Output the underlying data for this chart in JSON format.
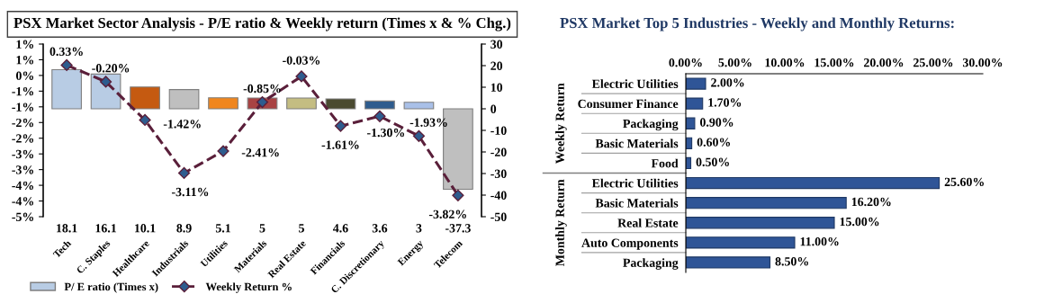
{
  "chart_data": [
    {
      "type": "bar",
      "title": "PSX Market Sector Analysis - P/E ratio & Weekly return (Times x & % Chg.)",
      "categories": [
        "Tech",
        "C. Staples",
        "Healthcare",
        "Industrials",
        "Utilities",
        "Materials",
        "Real Estate",
        "Financials",
        "C. Discretionary",
        "Energy",
        "Telecom"
      ],
      "series": [
        {
          "name": "P/ E ratio (Times x)",
          "axis": "y2",
          "colors": [
            "#b8cce4",
            "#b8cce4",
            "#c55a11",
            "#bfbfbf",
            "#f0861e",
            "#a84343",
            "#c4bd82",
            "#4a4a30",
            "#2e5c8e",
            "#a9c0e8",
            "#bfbfbf"
          ],
          "color": "#b8cce4",
          "values": [
            18.1,
            16.1,
            10.1,
            8.9,
            5.1,
            5,
            5,
            4.6,
            3.6,
            3,
            -37.3
          ],
          "value_labels": [
            "18.1",
            "16.1",
            "10.1",
            "8.9",
            "5.1",
            "5",
            "5",
            "4.6",
            "3.6",
            "3",
            "-37.3"
          ]
        },
        {
          "name": "Weekly Return %",
          "type": "line",
          "axis": "y",
          "color": "#5a1f3a",
          "values": [
            0.33,
            -0.2,
            -1.42,
            -3.11,
            -2.41,
            -0.85,
            -0.03,
            -1.61,
            -1.3,
            -1.93,
            -3.82
          ],
          "value_labels": [
            "0.33%",
            "-0.20%",
            "-1.42%",
            "-3.11%",
            "-2.41%",
            "-0.85%",
            "-0.03%",
            "-1.61%",
            "-1.30%",
            "-1.93%",
            "-3.82%"
          ]
        }
      ],
      "ylim": [
        -4.5,
        1.0
      ],
      "yticks": [
        {
          "value": 1.0,
          "label": "1%"
        },
        {
          "value": 0.5,
          "label": "1%"
        },
        {
          "value": 0,
          "label": "0%"
        },
        {
          "value": -0.5,
          "label": "-1%"
        },
        {
          "value": -1.0,
          "label": "-1%"
        },
        {
          "value": -1.5,
          "label": "-2%"
        },
        {
          "value": -2.0,
          "label": "-2%"
        },
        {
          "value": -2.5,
          "label": "-3%"
        },
        {
          "value": -3.0,
          "label": "-3%"
        },
        {
          "value": -3.5,
          "label": "-4%"
        },
        {
          "value": -4.0,
          "label": "-4%"
        },
        {
          "value": -4.5,
          "label": "-5%"
        }
      ],
      "y2lim": [
        -50,
        30
      ],
      "y2ticks": [
        30,
        20,
        10,
        0,
        -10,
        -20,
        -30,
        -40,
        -50
      ],
      "marker": "diamond",
      "line_style": "dashed",
      "legend": "bottom",
      "grid": false
    },
    {
      "type": "bar",
      "orientation": "horizontal",
      "title": "PSX Market Top 5 Industries - Weekly and Monthly Returns:",
      "categories": [
        "Electric Utilities",
        "Consumer Finance",
        "Packaging",
        "Basic Materials",
        "Food",
        "Electric Utilities",
        "Basic Materials",
        "Real Estate",
        "Auto Components",
        "Packaging"
      ],
      "values": [
        2.0,
        1.7,
        0.9,
        0.6,
        0.5,
        25.6,
        16.2,
        15.0,
        11.0,
        8.5
      ],
      "value_labels": [
        "2.00%",
        "1.70%",
        "0.90%",
        "0.60%",
        "0.50%",
        "25.60%",
        "16.20%",
        "15.00%",
        "11.00%",
        "8.50%"
      ],
      "color": "#2f5597",
      "xlim": [
        0,
        30
      ],
      "xticks": [
        {
          "value": 0,
          "label": "0.00%"
        },
        {
          "value": 5,
          "label": "5.00%"
        },
        {
          "value": 10,
          "label": "10.00%"
        },
        {
          "value": 15,
          "label": "15.00%"
        },
        {
          "value": 20,
          "label": "20.00%"
        },
        {
          "value": 25,
          "label": "25.00%"
        },
        {
          "value": 30,
          "label": "30.00%"
        }
      ],
      "annotations": [
        "Weekly Return",
        "Monthly Return"
      ],
      "grid": false,
      "legend": false
    }
  ]
}
